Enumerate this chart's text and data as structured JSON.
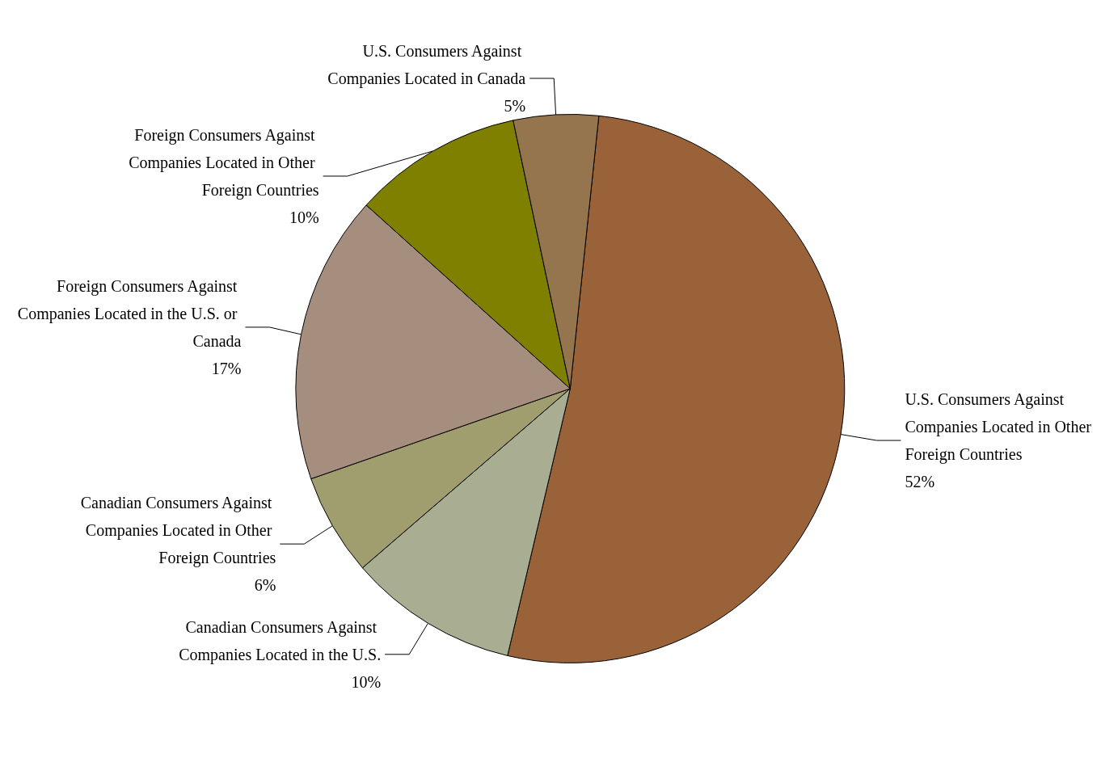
{
  "chart_data": {
    "type": "pie",
    "categories": [
      "U.S. Consumers Against Companies Located in Other Foreign Countries",
      "Canadian Consumers Against Companies Located in the U.S.",
      "Canadian Consumers Against Companies Located in Other Foreign Countries",
      "Foreign Consumers Against Companies Located in the U.S. or Canada",
      "Foreign Consumers Against Companies Located in Other Foreign Countries",
      "U.S. Consumers Against Companies Located in Canada"
    ],
    "values": [
      52,
      10,
      6,
      17,
      10,
      5
    ],
    "colors": [
      "#9a6239",
      "#a9ae93",
      "#a09e6e",
      "#a68e7e",
      "#7f7f00",
      "#94754e"
    ],
    "value_labels": [
      "52%",
      "10%",
      "6%",
      "17%",
      "10%",
      "5%"
    ],
    "legend": false
  }
}
